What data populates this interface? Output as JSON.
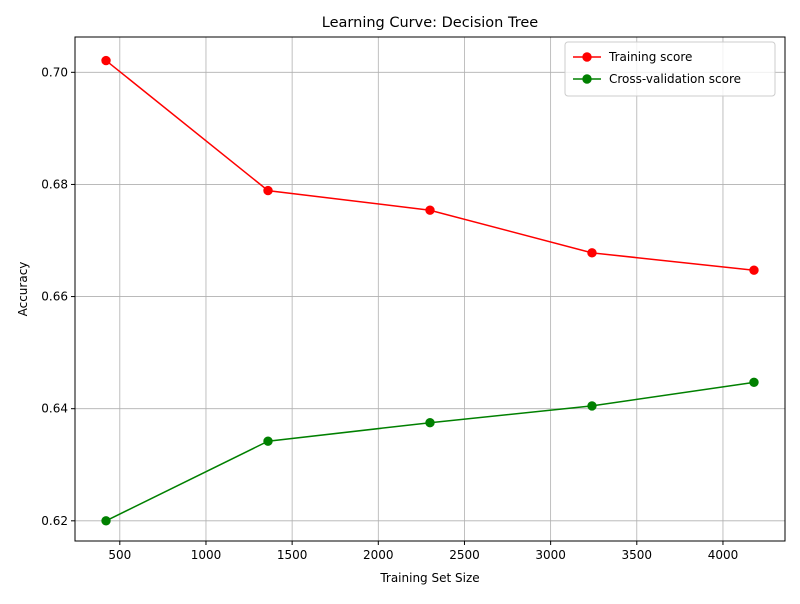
{
  "colors": {
    "training": "#ff0000",
    "cv": "#008000",
    "grid": "#b0b0b0",
    "axis": "#000000",
    "legend_border": "#cccccc"
  },
  "chart_data": {
    "type": "line",
    "title": "Learning Curve: Decision Tree",
    "xlabel": "Training Set Size",
    "ylabel": "Accuracy",
    "xlim": [
      240,
      4360
    ],
    "ylim": [
      0.6164,
      0.7063
    ],
    "xticks": [
      500,
      1000,
      1500,
      2000,
      2500,
      3000,
      3500,
      4000
    ],
    "xtick_labels": [
      "500",
      "1000",
      "1500",
      "2000",
      "2500",
      "3000",
      "3500",
      "4000"
    ],
    "yticks": [
      0.62,
      0.64,
      0.66,
      0.68,
      0.7
    ],
    "ytick_labels": [
      "0.62",
      "0.64",
      "0.66",
      "0.68",
      "0.70"
    ],
    "grid": true,
    "legend_position": "top-right",
    "x": [
      420,
      1360,
      2300,
      3240,
      4180
    ],
    "series": [
      {
        "name": "Training score",
        "color": "#ff0000",
        "marker": "circle",
        "values": [
          0.7021,
          0.6789,
          0.6754,
          0.6678,
          0.6647
        ]
      },
      {
        "name": "Cross-validation score",
        "color": "#008000",
        "marker": "circle",
        "values": [
          0.62,
          0.6342,
          0.6375,
          0.6405,
          0.6447
        ]
      }
    ]
  }
}
